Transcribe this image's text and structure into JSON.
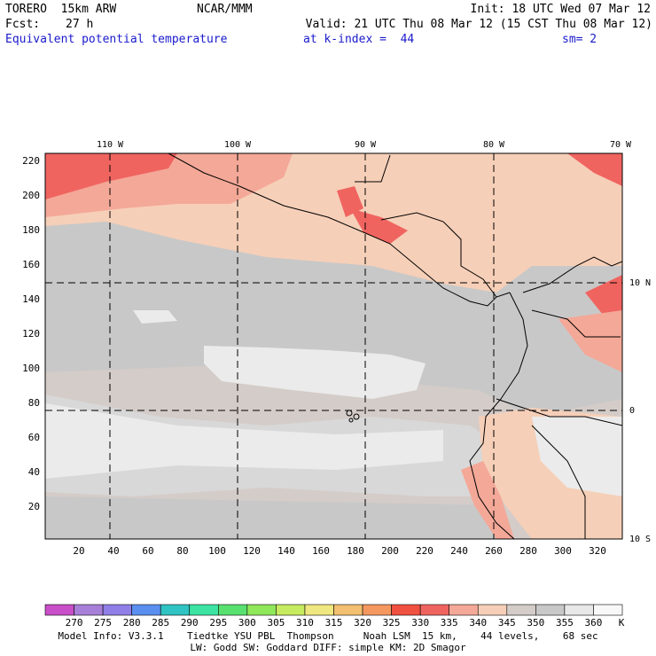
{
  "header": {
    "model": "TORERO  15km ARW",
    "center": "NCAR/MMM",
    "init": "Init: 18 UTC Wed 07 Mar 12",
    "fcst_label": "Fcst:",
    "fcst_value": "27 h",
    "valid": "Valid: 21 UTC Thu 08 Mar 12 (15 CST Thu 08 Mar 12)",
    "field": "Equivalent potential temperature",
    "level": "at k-index =  44",
    "smooth": "sm= 2"
  },
  "map": {
    "top_lon_labels": [
      "110 W",
      "100 W",
      "90 W",
      "80 W",
      "70 W"
    ],
    "right_lat_labels": [
      "10 N",
      "0",
      "10 S"
    ],
    "y_ticks": [
      "20",
      "40",
      "60",
      "80",
      "100",
      "120",
      "140",
      "160",
      "180",
      "200",
      "220"
    ],
    "x_ticks": [
      "20",
      "40",
      "60",
      "80",
      "100",
      "120",
      "140",
      "160",
      "180",
      "200",
      "220",
      "240",
      "260",
      "280",
      "300",
      "320"
    ]
  },
  "colorbar": {
    "labels": [
      "270",
      "275",
      "280",
      "285",
      "290",
      "295",
      "300",
      "305",
      "310",
      "315",
      "320",
      "325",
      "330",
      "335",
      "340",
      "345",
      "350",
      "355",
      "360"
    ],
    "unit": "K",
    "colors": [
      "#c84fc8",
      "#a77fd8",
      "#8f7fe6",
      "#5a8fef",
      "#2fc3c3",
      "#3ce3a3",
      "#58e070",
      "#8fe75a",
      "#c7eb60",
      "#efe77f",
      "#f2c070",
      "#f49860",
      "#f05040",
      "#f06460",
      "#f4a898",
      "#f6cfb8",
      "#d4ccc8",
      "#c8c8c8",
      "#e8e8e8",
      "#f8f8f8"
    ]
  },
  "footer": {
    "line1": "Model Info: V3.3.1    Tiedtke YSU PBL  Thompson     Noah LSM  15 km,    44 levels,    68 sec",
    "line2": "LW: Godd SW: Goddard DIFF: simple KM: 2D Smagor"
  }
}
